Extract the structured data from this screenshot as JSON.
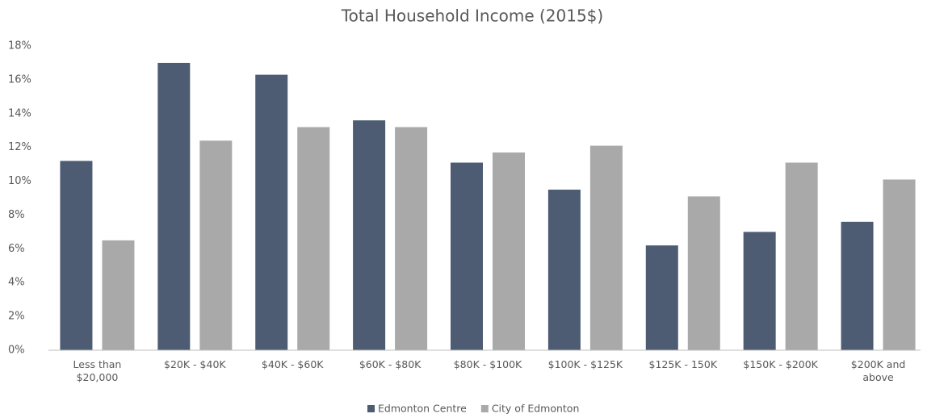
{
  "chart_data": {
    "type": "bar",
    "title": "Total Household Income (2015$)",
    "categories": [
      "Less than\n$20,000",
      "$20K - $40K",
      "$40K - $60K",
      "$60K - $80K",
      "$80K - $100K",
      "$100K - $125K",
      "$125K - 150K",
      "$150K - $200K",
      "$200K and\nabove"
    ],
    "series": [
      {
        "name": "Edmonton Centre",
        "color": "#4d5b73",
        "values": [
          11.2,
          17.0,
          16.3,
          13.6,
          11.1,
          9.5,
          6.2,
          7.0,
          7.6
        ]
      },
      {
        "name": "City of Edmonton",
        "color": "#a9a9a9",
        "values": [
          6.5,
          12.4,
          13.2,
          13.2,
          11.7,
          12.1,
          9.1,
          11.1,
          10.1
        ]
      }
    ],
    "ylim": [
      0,
      18
    ],
    "yticks": [
      {
        "value": 0,
        "label": "0%"
      },
      {
        "value": 2,
        "label": "2%"
      },
      {
        "value": 4,
        "label": "4%"
      },
      {
        "value": 6,
        "label": "6%"
      },
      {
        "value": 8,
        "label": "8%"
      },
      {
        "value": 10,
        "label": "10%"
      },
      {
        "value": 12,
        "label": "12%"
      },
      {
        "value": 14,
        "label": "14%"
      },
      {
        "value": 16,
        "label": "16%"
      },
      {
        "value": 18,
        "label": "18%"
      }
    ],
    "grid": false,
    "legend": "bottom"
  }
}
